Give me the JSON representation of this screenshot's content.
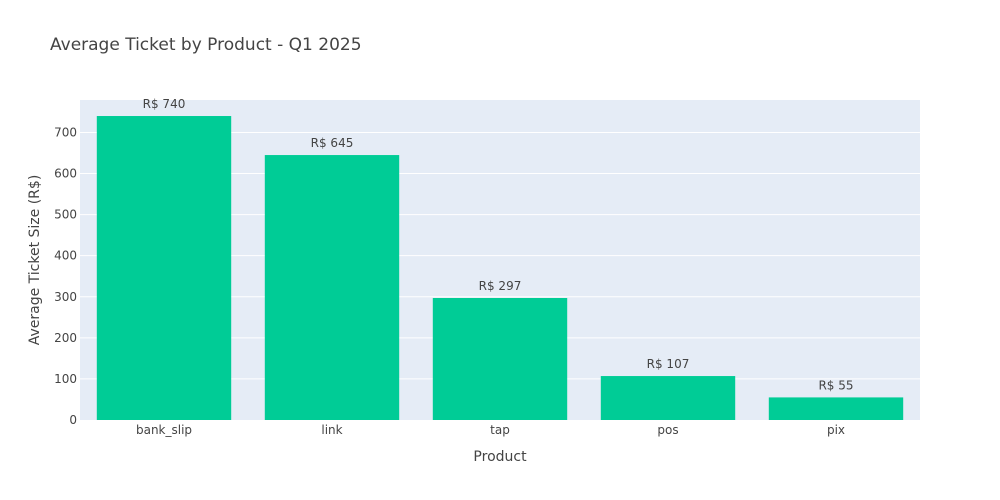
{
  "chart_data": {
    "type": "bar",
    "title": "Average Ticket by Product - Q1 2025",
    "xlabel": "Product",
    "ylabel": "Average Ticket Size (R$)",
    "categories": [
      "bank_slip",
      "link",
      "tap",
      "pos",
      "pix"
    ],
    "values": [
      740,
      645,
      297,
      107,
      55
    ],
    "data_labels": [
      "R$ 740",
      "R$ 645",
      "R$ 297",
      "R$ 107",
      "R$ 55"
    ],
    "ylim": [
      0,
      779
    ],
    "y_ticks": [
      0,
      100,
      200,
      300,
      400,
      500,
      600,
      700
    ],
    "grid": true,
    "legend": "none",
    "colors": {
      "bar": "#00cc96",
      "plot_background": "#e5ecf6",
      "gridline": "#ffffff",
      "text": "#444444"
    }
  }
}
